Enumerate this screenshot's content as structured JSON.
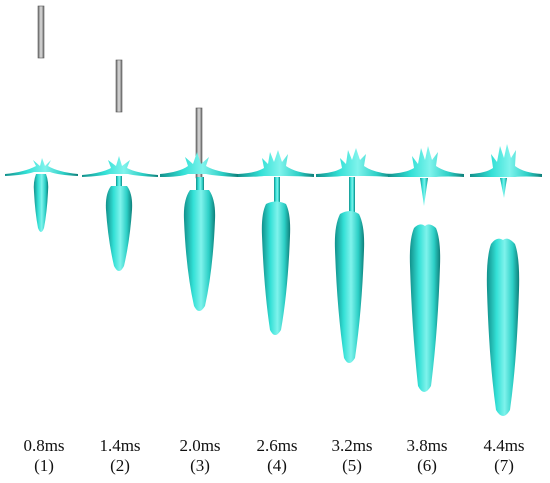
{
  "frames": [
    {
      "time": "0.8ms",
      "index": "(1)"
    },
    {
      "time": "1.4ms",
      "index": "(2)"
    },
    {
      "time": "2.0ms",
      "index": "(3)"
    },
    {
      "time": "2.6ms",
      "index": "(4)"
    },
    {
      "time": "3.2ms",
      "index": "(5)"
    },
    {
      "time": "3.8ms",
      "index": "(6)"
    },
    {
      "time": "4.4ms",
      "index": "(7)"
    }
  ],
  "colors": {
    "cavity_fill": "#33e0d6",
    "cavity_shade": "#1aa8a2",
    "cavity_light": "#8ff5ef",
    "rod": "#9a9a9a",
    "rod_edge": "#555555"
  }
}
